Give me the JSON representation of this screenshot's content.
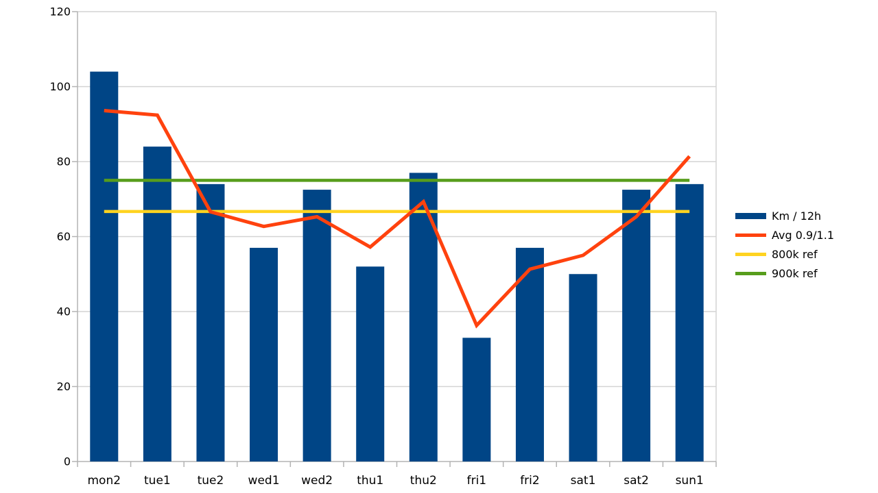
{
  "chart_data": {
    "type": "bar",
    "title": "",
    "categories": [
      "mon2",
      "tue1",
      "tue2",
      "wed1",
      "wed2",
      "thu1",
      "thu2",
      "fri1",
      "fri2",
      "sat1",
      "sat2",
      "sun1"
    ],
    "series": [
      {
        "name": "Km / 12h",
        "kind": "bar",
        "color": "#004586",
        "values": [
          104,
          84,
          74,
          57,
          72.5,
          52,
          77,
          33,
          57,
          50,
          72.5,
          74
        ]
      },
      {
        "name": "Avg 0.9/1.1",
        "kind": "line",
        "color": "#ff420e",
        "stroke_width": 5,
        "values": [
          93.6,
          92.4,
          66.6,
          62.7,
          65.3,
          57.2,
          69.3,
          36.3,
          51.3,
          55,
          65.3,
          81.4
        ]
      },
      {
        "name": "800k ref",
        "kind": "hline",
        "color": "#ffd320",
        "stroke_width": 4.5,
        "value": 66.7
      },
      {
        "name": "900k ref",
        "kind": "hline",
        "color": "#579d1c",
        "stroke_width": 4.5,
        "value": 75
      }
    ],
    "xlabel": "",
    "ylabel": "",
    "ylim": [
      0,
      120
    ],
    "yticks": [
      0,
      20,
      40,
      60,
      80,
      100,
      120
    ],
    "grid": "horizontal",
    "legend_position": "right"
  },
  "colors": {
    "background": "#ffffff",
    "grid": "#d3d3d3",
    "axis": "#b3b3b3",
    "text": "#000000"
  }
}
